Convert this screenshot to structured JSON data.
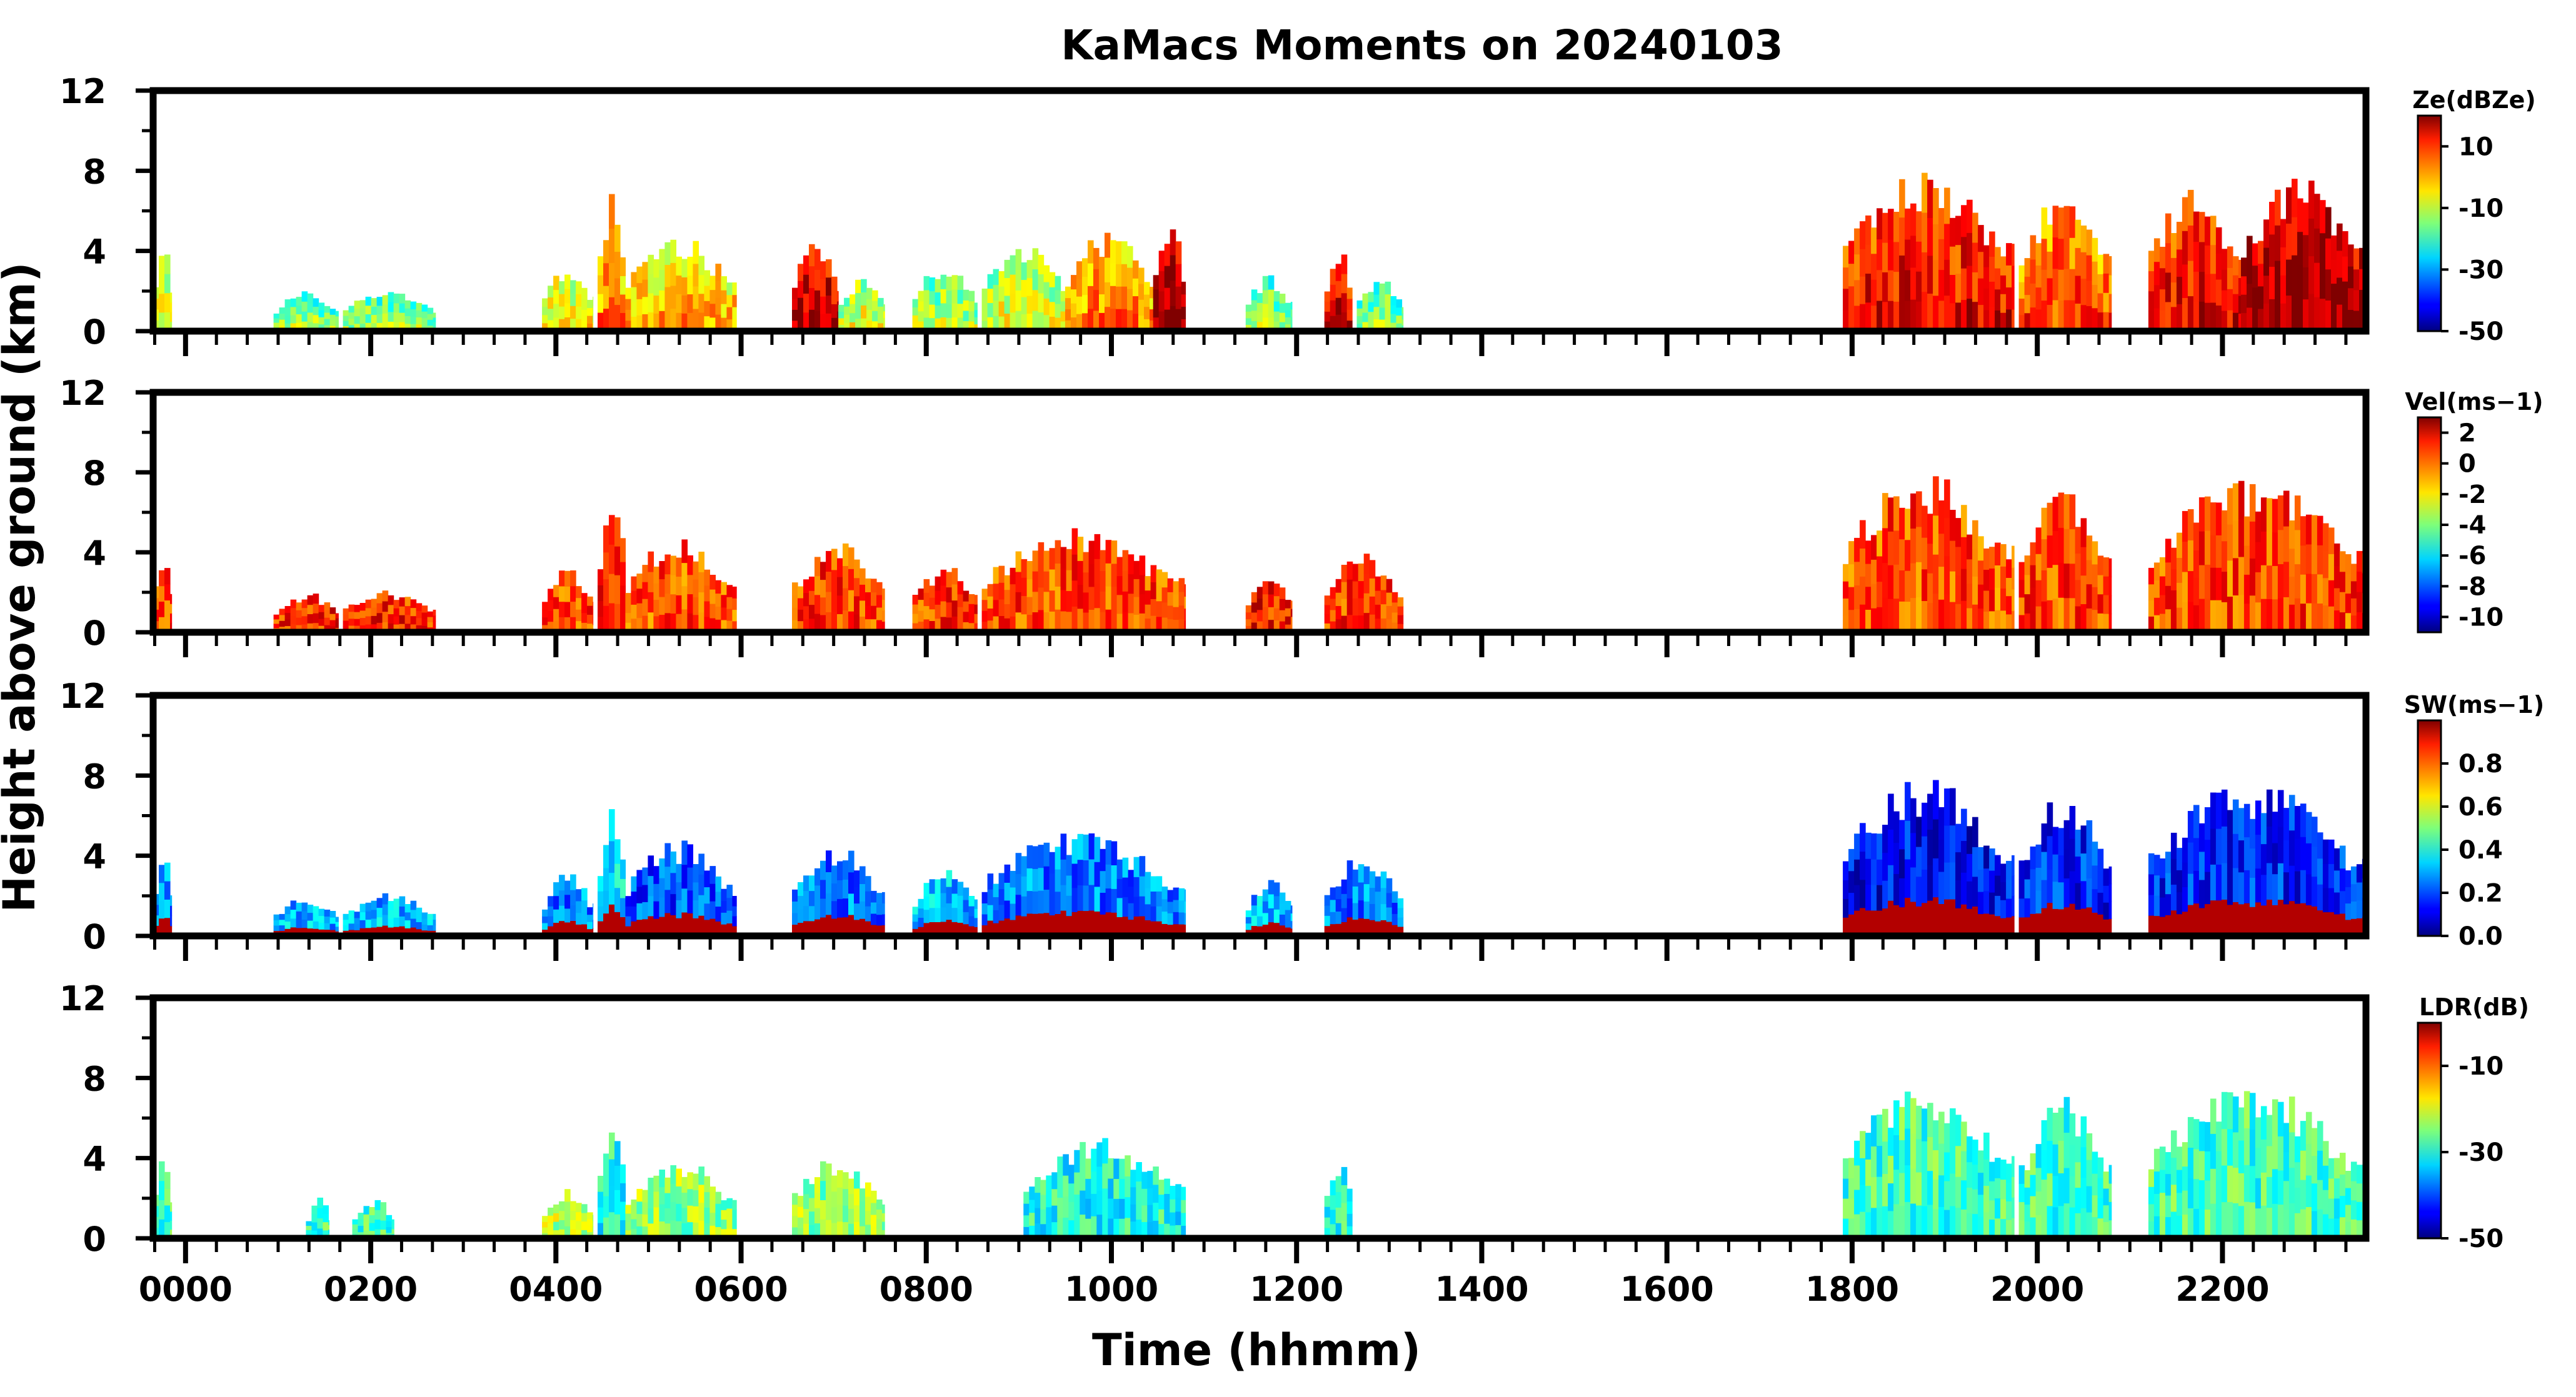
{
  "chart_data": {
    "type": "heatmap",
    "title": "KaMacs Moments on 20240103",
    "xlabel": "Time (hhmm)",
    "ylabel": "Height above ground (km)",
    "xlim": [
      -0.35,
      23.55
    ],
    "xticks": [
      "0000",
      "0200",
      "0400",
      "0600",
      "0800",
      "1000",
      "1200",
      "1400",
      "1600",
      "1800",
      "2000",
      "2200"
    ],
    "ylim": [
      0,
      12
    ],
    "yticks": [
      "0",
      "4",
      "8",
      "12"
    ],
    "panels": [
      {
        "id": "ze",
        "colorbar_label": "Ze(dBZe)",
        "clim": [
          -50,
          20
        ],
        "cticks": [
          "10",
          "-10",
          "-30",
          "-50"
        ],
        "cvalues": [
          10,
          -10,
          -30,
          -50
        ],
        "clouds": [
          {
            "t0": -0.35,
            "t1": -0.15,
            "top": 3.8,
            "v": -15
          },
          {
            "t0": 0.95,
            "t1": 1.65,
            "top": 1.8,
            "v": -20
          },
          {
            "t0": 1.7,
            "t1": 2.7,
            "top": 1.9,
            "v": -20
          },
          {
            "t0": 3.85,
            "t1": 4.4,
            "top": 2.8,
            "v": -12
          },
          {
            "t0": 4.45,
            "t1": 4.75,
            "top": 6.0,
            "v": -5
          },
          {
            "t0": 4.75,
            "t1": 5.95,
            "top": 4.2,
            "v": -8
          },
          {
            "t0": 6.55,
            "t1": 7.05,
            "top": 4.0,
            "v": 10
          },
          {
            "t0": 7.05,
            "t1": 7.55,
            "top": 2.4,
            "v": -15
          },
          {
            "t0": 7.85,
            "t1": 8.55,
            "top": 3.0,
            "v": -18
          },
          {
            "t0": 8.6,
            "t1": 9.5,
            "top": 4.0,
            "v": -15
          },
          {
            "t0": 9.5,
            "t1": 10.45,
            "top": 4.4,
            "v": -5
          },
          {
            "t0": 10.45,
            "t1": 10.8,
            "top": 4.6,
            "v": 12
          },
          {
            "t0": 11.45,
            "t1": 11.95,
            "top": 2.5,
            "v": -20
          },
          {
            "t0": 12.3,
            "t1": 12.6,
            "top": 3.6,
            "v": 8
          },
          {
            "t0": 12.65,
            "t1": 13.15,
            "top": 2.5,
            "v": -20
          },
          {
            "t0": 17.9,
            "t1": 19.75,
            "top": 7.0,
            "v": 5
          },
          {
            "t0": 19.8,
            "t1": 20.8,
            "top": 6.2,
            "v": 0
          },
          {
            "t0": 21.2,
            "t1": 22.2,
            "top": 6.5,
            "v": 5
          },
          {
            "t0": 22.2,
            "t1": 23.55,
            "top": 6.8,
            "v": 12
          }
        ]
      },
      {
        "id": "vel",
        "colorbar_label": "Vel(ms−1)",
        "clim": [
          -11,
          3
        ],
        "cticks": [
          "2",
          "0",
          "-2",
          "-4",
          "-6",
          "-8",
          "-10"
        ],
        "cvalues": [
          2,
          0,
          -2,
          -4,
          -6,
          -8,
          -10
        ],
        "clouds": [
          {
            "t0": -0.35,
            "t1": -0.15,
            "top": 3.8,
            "v": 0.5
          },
          {
            "t0": 0.95,
            "t1": 1.65,
            "top": 1.8,
            "v": 0.8
          },
          {
            "t0": 1.7,
            "t1": 2.7,
            "top": 1.9,
            "v": 0.8
          },
          {
            "t0": 3.85,
            "t1": 4.4,
            "top": 2.8,
            "v": 0.3
          },
          {
            "t0": 4.45,
            "t1": 4.75,
            "top": 6.0,
            "v": 0.5
          },
          {
            "t0": 4.75,
            "t1": 5.95,
            "top": 4.2,
            "v": 0.2
          },
          {
            "t0": 6.55,
            "t1": 7.55,
            "top": 4.0,
            "v": 0.4
          },
          {
            "t0": 7.85,
            "t1": 8.55,
            "top": 3.0,
            "v": 0.6
          },
          {
            "t0": 8.6,
            "t1": 10.8,
            "top": 4.6,
            "v": 0.3
          },
          {
            "t0": 11.45,
            "t1": 11.95,
            "top": 2.5,
            "v": 1.0
          },
          {
            "t0": 12.3,
            "t1": 13.15,
            "top": 3.6,
            "v": 0.6
          },
          {
            "t0": 17.9,
            "t1": 19.75,
            "top": 7.0,
            "v": 0.2
          },
          {
            "t0": 19.8,
            "t1": 20.8,
            "top": 6.2,
            "v": 0.4
          },
          {
            "t0": 21.2,
            "t1": 23.55,
            "top": 6.8,
            "v": 0.3
          }
        ]
      },
      {
        "id": "sw",
        "colorbar_label": "SW(ms−1)",
        "clim": [
          0,
          1.0
        ],
        "cticks": [
          "0.8",
          "0.6",
          "0.4",
          "0.2",
          "0.0"
        ],
        "cvalues": [
          0.8,
          0.6,
          0.4,
          0.2,
          0.0
        ],
        "clouds": [
          {
            "t0": -0.35,
            "t1": -0.15,
            "top": 3.8,
            "v": 0.25
          },
          {
            "t0": 0.95,
            "t1": 1.65,
            "top": 1.8,
            "v": 0.3
          },
          {
            "t0": 1.7,
            "t1": 2.7,
            "top": 1.9,
            "v": 0.3
          },
          {
            "t0": 3.85,
            "t1": 4.4,
            "top": 2.8,
            "v": 0.25
          },
          {
            "t0": 4.45,
            "t1": 4.75,
            "top": 6.0,
            "v": 0.35
          },
          {
            "t0": 4.75,
            "t1": 5.95,
            "top": 4.2,
            "v": 0.2
          },
          {
            "t0": 6.55,
            "t1": 7.55,
            "top": 4.0,
            "v": 0.25
          },
          {
            "t0": 7.85,
            "t1": 8.55,
            "top": 3.0,
            "v": 0.3
          },
          {
            "t0": 8.6,
            "t1": 10.8,
            "top": 4.6,
            "v": 0.25
          },
          {
            "t0": 11.45,
            "t1": 11.95,
            "top": 2.5,
            "v": 0.3
          },
          {
            "t0": 12.3,
            "t1": 13.15,
            "top": 3.6,
            "v": 0.25
          },
          {
            "t0": 17.9,
            "t1": 19.75,
            "top": 7.0,
            "v": 0.12
          },
          {
            "t0": 19.8,
            "t1": 20.8,
            "top": 6.2,
            "v": 0.15
          },
          {
            "t0": 21.2,
            "t1": 23.55,
            "top": 6.8,
            "v": 0.15
          }
        ]
      },
      {
        "id": "ldr",
        "colorbar_label": "LDR(dB)",
        "clim": [
          -50,
          0
        ],
        "cticks": [
          "-10",
          "-30",
          "-50"
        ],
        "cvalues": [
          -10,
          -30,
          -50
        ],
        "clouds": [
          {
            "t0": -0.35,
            "t1": -0.15,
            "top": 3.6,
            "v": -28
          },
          {
            "t0": 1.3,
            "t1": 1.55,
            "top": 1.8,
            "v": -28
          },
          {
            "t0": 1.8,
            "t1": 2.25,
            "top": 1.8,
            "v": -28
          },
          {
            "t0": 3.85,
            "t1": 4.4,
            "top": 2.2,
            "v": -22
          },
          {
            "t0": 4.45,
            "t1": 4.75,
            "top": 5.8,
            "v": -30
          },
          {
            "t0": 4.75,
            "t1": 5.95,
            "top": 3.5,
            "v": -24
          },
          {
            "t0": 6.55,
            "t1": 7.55,
            "top": 3.6,
            "v": -24
          },
          {
            "t0": 9.05,
            "t1": 10.8,
            "top": 4.4,
            "v": -30
          },
          {
            "t0": 12.3,
            "t1": 12.6,
            "top": 3.4,
            "v": -30
          },
          {
            "t0": 17.9,
            "t1": 19.75,
            "top": 7.0,
            "v": -28
          },
          {
            "t0": 19.8,
            "t1": 20.8,
            "top": 6.2,
            "v": -28
          },
          {
            "t0": 21.2,
            "t1": 23.55,
            "top": 6.8,
            "v": -28
          }
        ]
      }
    ]
  }
}
